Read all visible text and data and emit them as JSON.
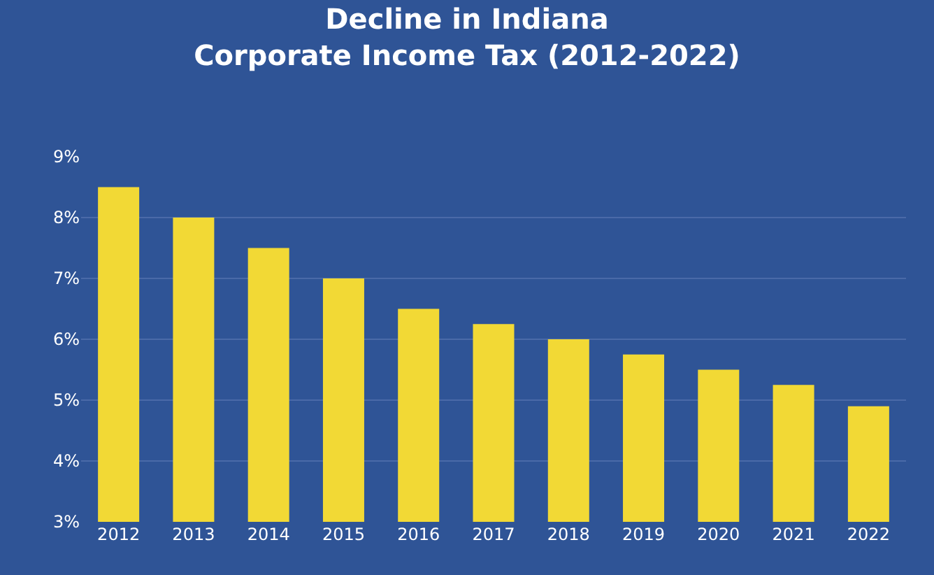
{
  "chart_data": {
    "type": "bar",
    "title": "Decline in Indiana\nCorporate Income Tax (2012-2022)",
    "categories": [
      "2012",
      "2013",
      "2014",
      "2015",
      "2016",
      "2017",
      "2018",
      "2019",
      "2020",
      "2021",
      "2022"
    ],
    "values": [
      8.5,
      8.0,
      7.5,
      7.0,
      6.5,
      6.25,
      6.0,
      5.75,
      5.5,
      5.25,
      4.9
    ],
    "color": "#f2d935",
    "ylim": [
      3,
      9
    ],
    "yticks": [
      {
        "value": 3,
        "label": "3%"
      },
      {
        "value": 4,
        "label": "4%"
      },
      {
        "value": 5,
        "label": "5%"
      },
      {
        "value": 6,
        "label": "6%"
      },
      {
        "value": 7,
        "label": "7%"
      },
      {
        "value": 8,
        "label": "8%"
      },
      {
        "value": 9,
        "label": "9%"
      }
    ],
    "grid": "y"
  }
}
